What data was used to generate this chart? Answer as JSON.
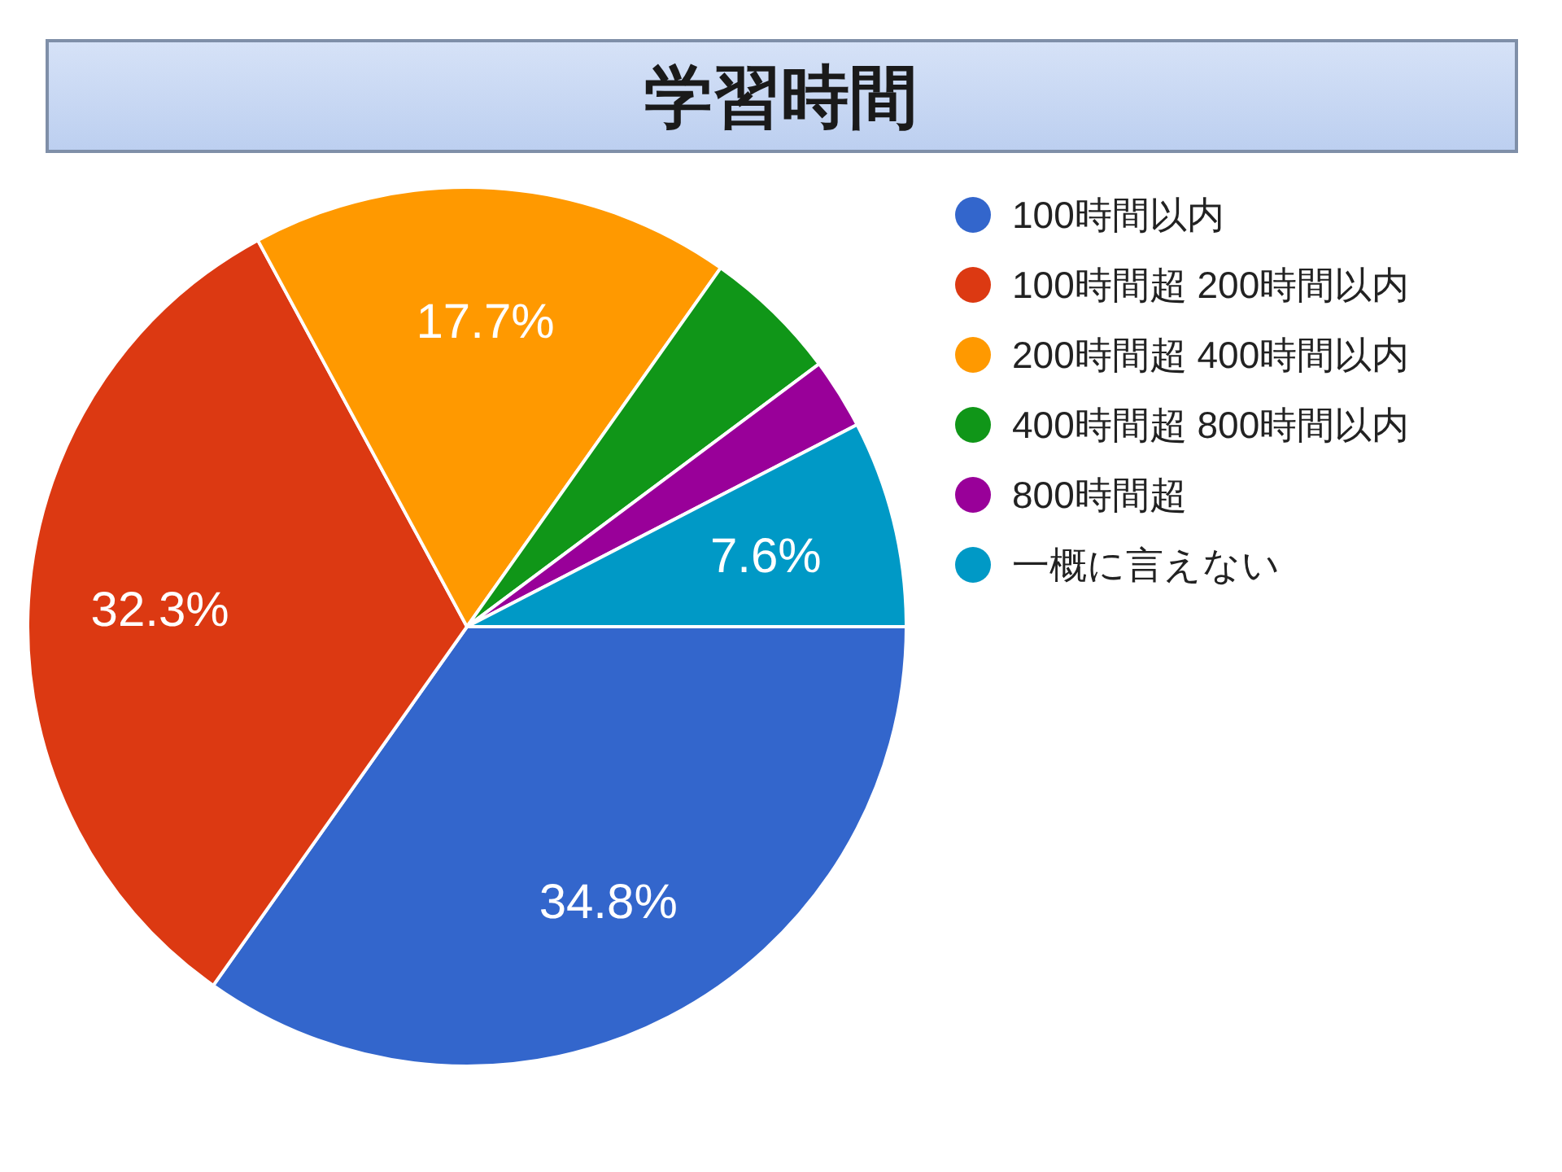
{
  "chart_data": {
    "type": "pie",
    "title": "学習時間",
    "categories": [
      "100時間以内",
      "100時間超 200時間以内",
      "200時間超 400時間以内",
      "400時間超 800時間以内",
      "800時間超",
      "一概に言えない"
    ],
    "values": [
      34.8,
      32.3,
      17.7,
      5.0,
      2.6,
      7.6
    ],
    "colors": [
      "#3366cc",
      "#dc3912",
      "#ff9900",
      "#109618",
      "#990099",
      "#0099c6"
    ],
    "value_labels": [
      "34.8%",
      "32.3%",
      "17.7%",
      null,
      null,
      "7.6%"
    ],
    "legend": "right"
  }
}
